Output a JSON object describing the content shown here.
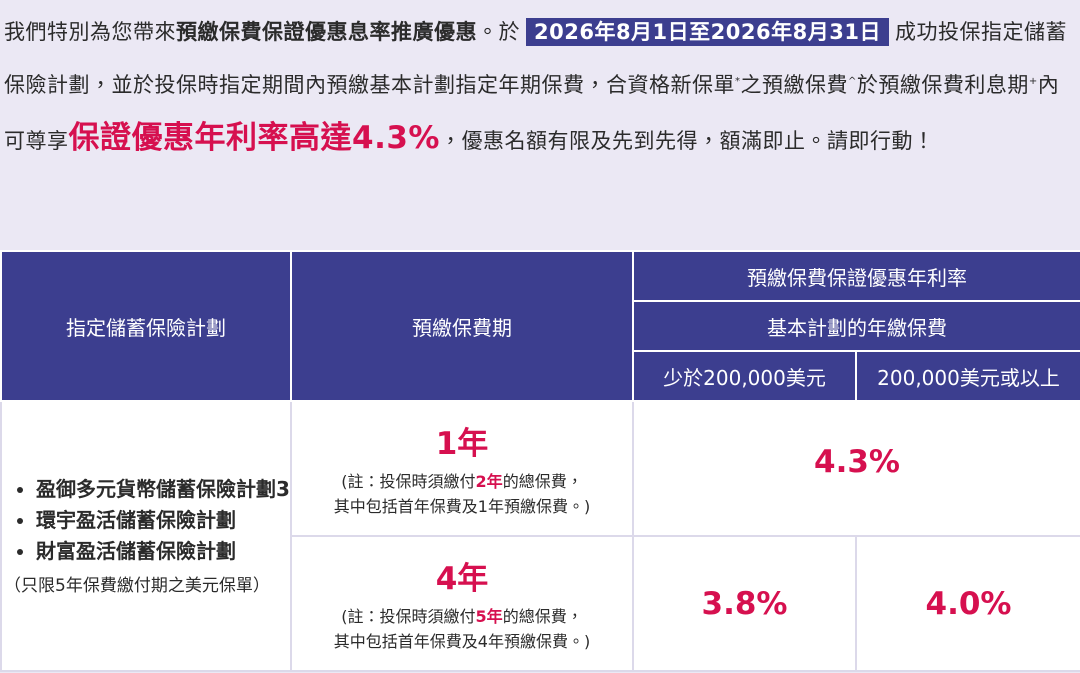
{
  "intro": {
    "lead": "我們特別為您帶來",
    "promo_name": "預繳保費保證優惠息率推廣優惠",
    "period_prefix": "。於",
    "period": "2026年8月1日至2026年8月31日",
    "body_1": "成功投保指定儲蓄保險計劃，並於投保時指定期間內預繳基本計劃指定年期保費，合資格新保單",
    "mark_1": "*",
    "body_2": "之預繳保費",
    "mark_2": "^",
    "body_3": "於預繳保費利息期",
    "mark_3": "+",
    "body_4": "內可尊享",
    "highlight": "保證優惠年利率高達4.3%",
    "closing": "，優惠名額有限及先到先得，額滿即止。請即行動！"
  },
  "table": {
    "header": {
      "plans": "指定儲蓄保險計劃",
      "period": "預繳保費期",
      "rate": "預繳保費保證優惠年利率",
      "premium": "基本計劃的年繳保費",
      "tiers": [
        "少於200,000美元",
        "200,000美元或以上"
      ]
    },
    "plans": [
      "盈御多元貨幣儲蓄保險計劃3",
      "環宇盈活儲蓄保險計劃",
      "財富盈活儲蓄保險計劃"
    ],
    "plans_note": "（只限5年保費繳付期之美元保單）",
    "rows": [
      {
        "term": "1年",
        "note_pre": "(註：投保時須繳付",
        "note_em": "2年",
        "note_mid": "的總保費，",
        "note_end": "其中包括首年保費及1年預繳保費。)",
        "rates": [
          "4.3%"
        ]
      },
      {
        "term": "4年",
        "note_pre": "(註：投保時須繳付",
        "note_em": "5年",
        "note_mid": "的總保費，",
        "note_end": "其中包括首年保費及4年預繳保費。)",
        "rates": [
          "3.8%",
          "4.0%"
        ]
      }
    ]
  }
}
